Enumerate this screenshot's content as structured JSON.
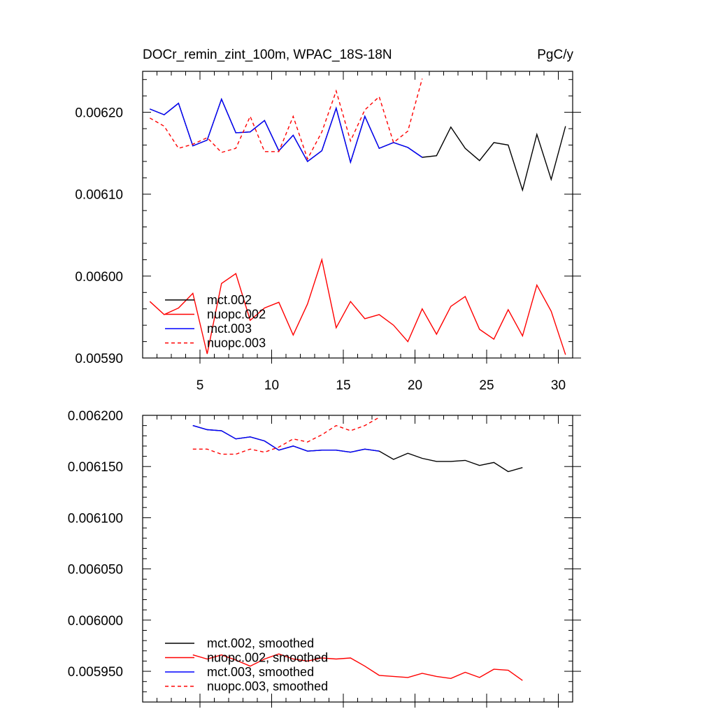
{
  "chart_data": [
    {
      "type": "line",
      "title": "DOCr_remin_zint_100m, WPAC_18S-18N",
      "units": "PgC/y",
      "xlabel": "",
      "ylabel": "",
      "xlim": [
        1,
        31
      ],
      "ylim": [
        0.0059,
        0.00625
      ],
      "xticks": [
        5,
        10,
        15,
        20,
        25,
        30
      ],
      "yticks": [
        0.0059,
        0.006,
        0.0061,
        0.0062
      ],
      "ytick_labels": [
        "0.00590",
        "0.00600",
        "0.00610",
        "0.00620"
      ],
      "grid": false,
      "legend_position": "bottom-left",
      "series": [
        {
          "name": "mct.002",
          "color": "#000000",
          "dash": "solid",
          "x": [
            1.5,
            2.5,
            3.5,
            4.5,
            5.5,
            6.5,
            7.5,
            8.5,
            9.5,
            10.5,
            11.5,
            12.5,
            13.5,
            14.5,
            15.5,
            16.5,
            17.5,
            18.5,
            19.5,
            20.5,
            21.5,
            22.5,
            23.5,
            24.5,
            25.5,
            26.5,
            27.5,
            28.5,
            29.5,
            30.5
          ],
          "values": [
            0.006204,
            0.006197,
            0.006211,
            0.006159,
            0.006166,
            0.006216,
            0.006175,
            0.006176,
            0.00619,
            0.006153,
            0.006172,
            0.00614,
            0.006153,
            0.006205,
            0.006139,
            0.006195,
            0.006156,
            0.006163,
            0.006157,
            0.006145,
            0.006147,
            0.006182,
            0.006156,
            0.006141,
            0.006163,
            0.00616,
            0.006105,
            0.006173,
            0.006118,
            0.006183
          ]
        },
        {
          "name": "nuopc.002",
          "color": "#ff0000",
          "dash": "solid",
          "x": [
            1.5,
            2.5,
            3.5,
            4.5,
            5.5,
            6.5,
            7.5,
            8.5,
            9.5,
            10.5,
            11.5,
            12.5,
            13.5,
            14.5,
            15.5,
            16.5,
            17.5,
            18.5,
            19.5,
            20.5,
            21.5,
            22.5,
            23.5,
            24.5,
            25.5,
            26.5,
            27.5,
            28.5,
            29.5,
            30.5
          ],
          "values": [
            0.005969,
            0.005953,
            0.005961,
            0.005979,
            0.005905,
            0.005991,
            0.006003,
            0.005946,
            0.005961,
            0.005968,
            0.005928,
            0.005966,
            0.00602,
            0.005937,
            0.005969,
            0.005948,
            0.005953,
            0.00594,
            0.00592,
            0.00596,
            0.005929,
            0.005963,
            0.005975,
            0.005935,
            0.005923,
            0.005959,
            0.005927,
            0.005989,
            0.005957,
            0.005904
          ]
        },
        {
          "name": "mct.003",
          "color": "#0000ff",
          "dash": "solid",
          "x": [
            1.5,
            2.5,
            3.5,
            4.5,
            5.5,
            6.5,
            7.5,
            8.5,
            9.5,
            10.5,
            11.5,
            12.5,
            13.5,
            14.5,
            15.5,
            16.5,
            17.5,
            18.5,
            19.5,
            20.5
          ],
          "values": [
            0.006204,
            0.006197,
            0.006211,
            0.006159,
            0.006166,
            0.006216,
            0.006175,
            0.006176,
            0.00619,
            0.006153,
            0.006172,
            0.00614,
            0.006153,
            0.006205,
            0.006139,
            0.006195,
            0.006156,
            0.006163,
            0.006157,
            0.006145
          ]
        },
        {
          "name": "nuopc.003",
          "color": "#ff0000",
          "dash": "dashed",
          "x": [
            1.5,
            2.5,
            3.5,
            4.5,
            5.5,
            6.5,
            7.5,
            8.5,
            9.5,
            10.5,
            11.5,
            12.5,
            13.5,
            14.5,
            15.5,
            16.5,
            17.5,
            18.5,
            19.5,
            20.5
          ],
          "values": [
            0.006193,
            0.006183,
            0.006156,
            0.006161,
            0.006169,
            0.006151,
            0.006156,
            0.006195,
            0.006152,
            0.006152,
            0.006195,
            0.006143,
            0.006176,
            0.006226,
            0.006165,
            0.006203,
            0.006219,
            0.006163,
            0.006177,
            0.006241
          ]
        }
      ]
    },
    {
      "type": "line",
      "title": "",
      "xlabel": "",
      "ylabel": "",
      "xlim": [
        1,
        31
      ],
      "ylim": [
        0.00592,
        0.0062
      ],
      "xticks": [
        5,
        10,
        15,
        20,
        25,
        30
      ],
      "yticks": [
        0.00595,
        0.006,
        0.00605,
        0.0061,
        0.00615,
        0.0062
      ],
      "ytick_labels": [
        "0.005950",
        "0.006000",
        "0.006050",
        "0.006100",
        "0.006150",
        "0.006200"
      ],
      "grid": false,
      "legend_position": "bottom-left",
      "series": [
        {
          "name": "mct.002, smoothed",
          "color": "#000000",
          "dash": "solid",
          "x": [
            4.5,
            5.5,
            6.5,
            7.5,
            8.5,
            9.5,
            10.5,
            11.5,
            12.5,
            13.5,
            14.5,
            15.5,
            16.5,
            17.5,
            18.5,
            19.5,
            20.5,
            21.5,
            22.5,
            23.5,
            24.5,
            25.5,
            26.5,
            27.5
          ],
          "values": [
            0.00619,
            0.006186,
            0.006185,
            0.006177,
            0.006179,
            0.006175,
            0.006166,
            0.00617,
            0.006165,
            0.006166,
            0.006166,
            0.006164,
            0.006167,
            0.006165,
            0.006157,
            0.006163,
            0.006158,
            0.006155,
            0.006155,
            0.006156,
            0.006151,
            0.006154,
            0.006145,
            0.006149
          ]
        },
        {
          "name": "nuopc.002, smoothed",
          "color": "#ff0000",
          "dash": "solid",
          "x": [
            4.5,
            5.5,
            6.5,
            7.5,
            8.5,
            9.5,
            10.5,
            11.5,
            12.5,
            13.5,
            14.5,
            15.5,
            16.5,
            17.5,
            18.5,
            19.5,
            20.5,
            21.5,
            22.5,
            23.5,
            24.5,
            25.5,
            26.5,
            27.5
          ],
          "values": [
            0.005966,
            0.005962,
            0.005966,
            0.005961,
            0.005955,
            0.005962,
            0.005967,
            0.005962,
            0.00596,
            0.005963,
            0.005962,
            0.005963,
            0.005955,
            0.005946,
            0.005945,
            0.005944,
            0.005948,
            0.005945,
            0.005943,
            0.005949,
            0.005944,
            0.005952,
            0.005951,
            0.005941
          ]
        },
        {
          "name": "mct.003, smoothed",
          "color": "#0000ff",
          "dash": "solid",
          "x": [
            4.5,
            5.5,
            6.5,
            7.5,
            8.5,
            9.5,
            10.5,
            11.5,
            12.5,
            13.5,
            14.5,
            15.5,
            16.5,
            17.5
          ],
          "values": [
            0.00619,
            0.006186,
            0.006185,
            0.006177,
            0.006179,
            0.006175,
            0.006166,
            0.00617,
            0.006165,
            0.006166,
            0.006166,
            0.006164,
            0.006167,
            0.006165
          ]
        },
        {
          "name": "nuopc.003, smoothed",
          "color": "#ff0000",
          "dash": "dashed",
          "x": [
            4.5,
            5.5,
            6.5,
            7.5,
            8.5,
            9.5,
            10.5,
            11.5,
            12.5,
            13.5,
            14.5,
            15.5,
            16.5,
            17.5
          ],
          "values": [
            0.006167,
            0.006167,
            0.006162,
            0.006162,
            0.006167,
            0.006164,
            0.006169,
            0.006177,
            0.006174,
            0.006181,
            0.00619,
            0.006185,
            0.00619,
            0.006198
          ]
        }
      ]
    }
  ]
}
